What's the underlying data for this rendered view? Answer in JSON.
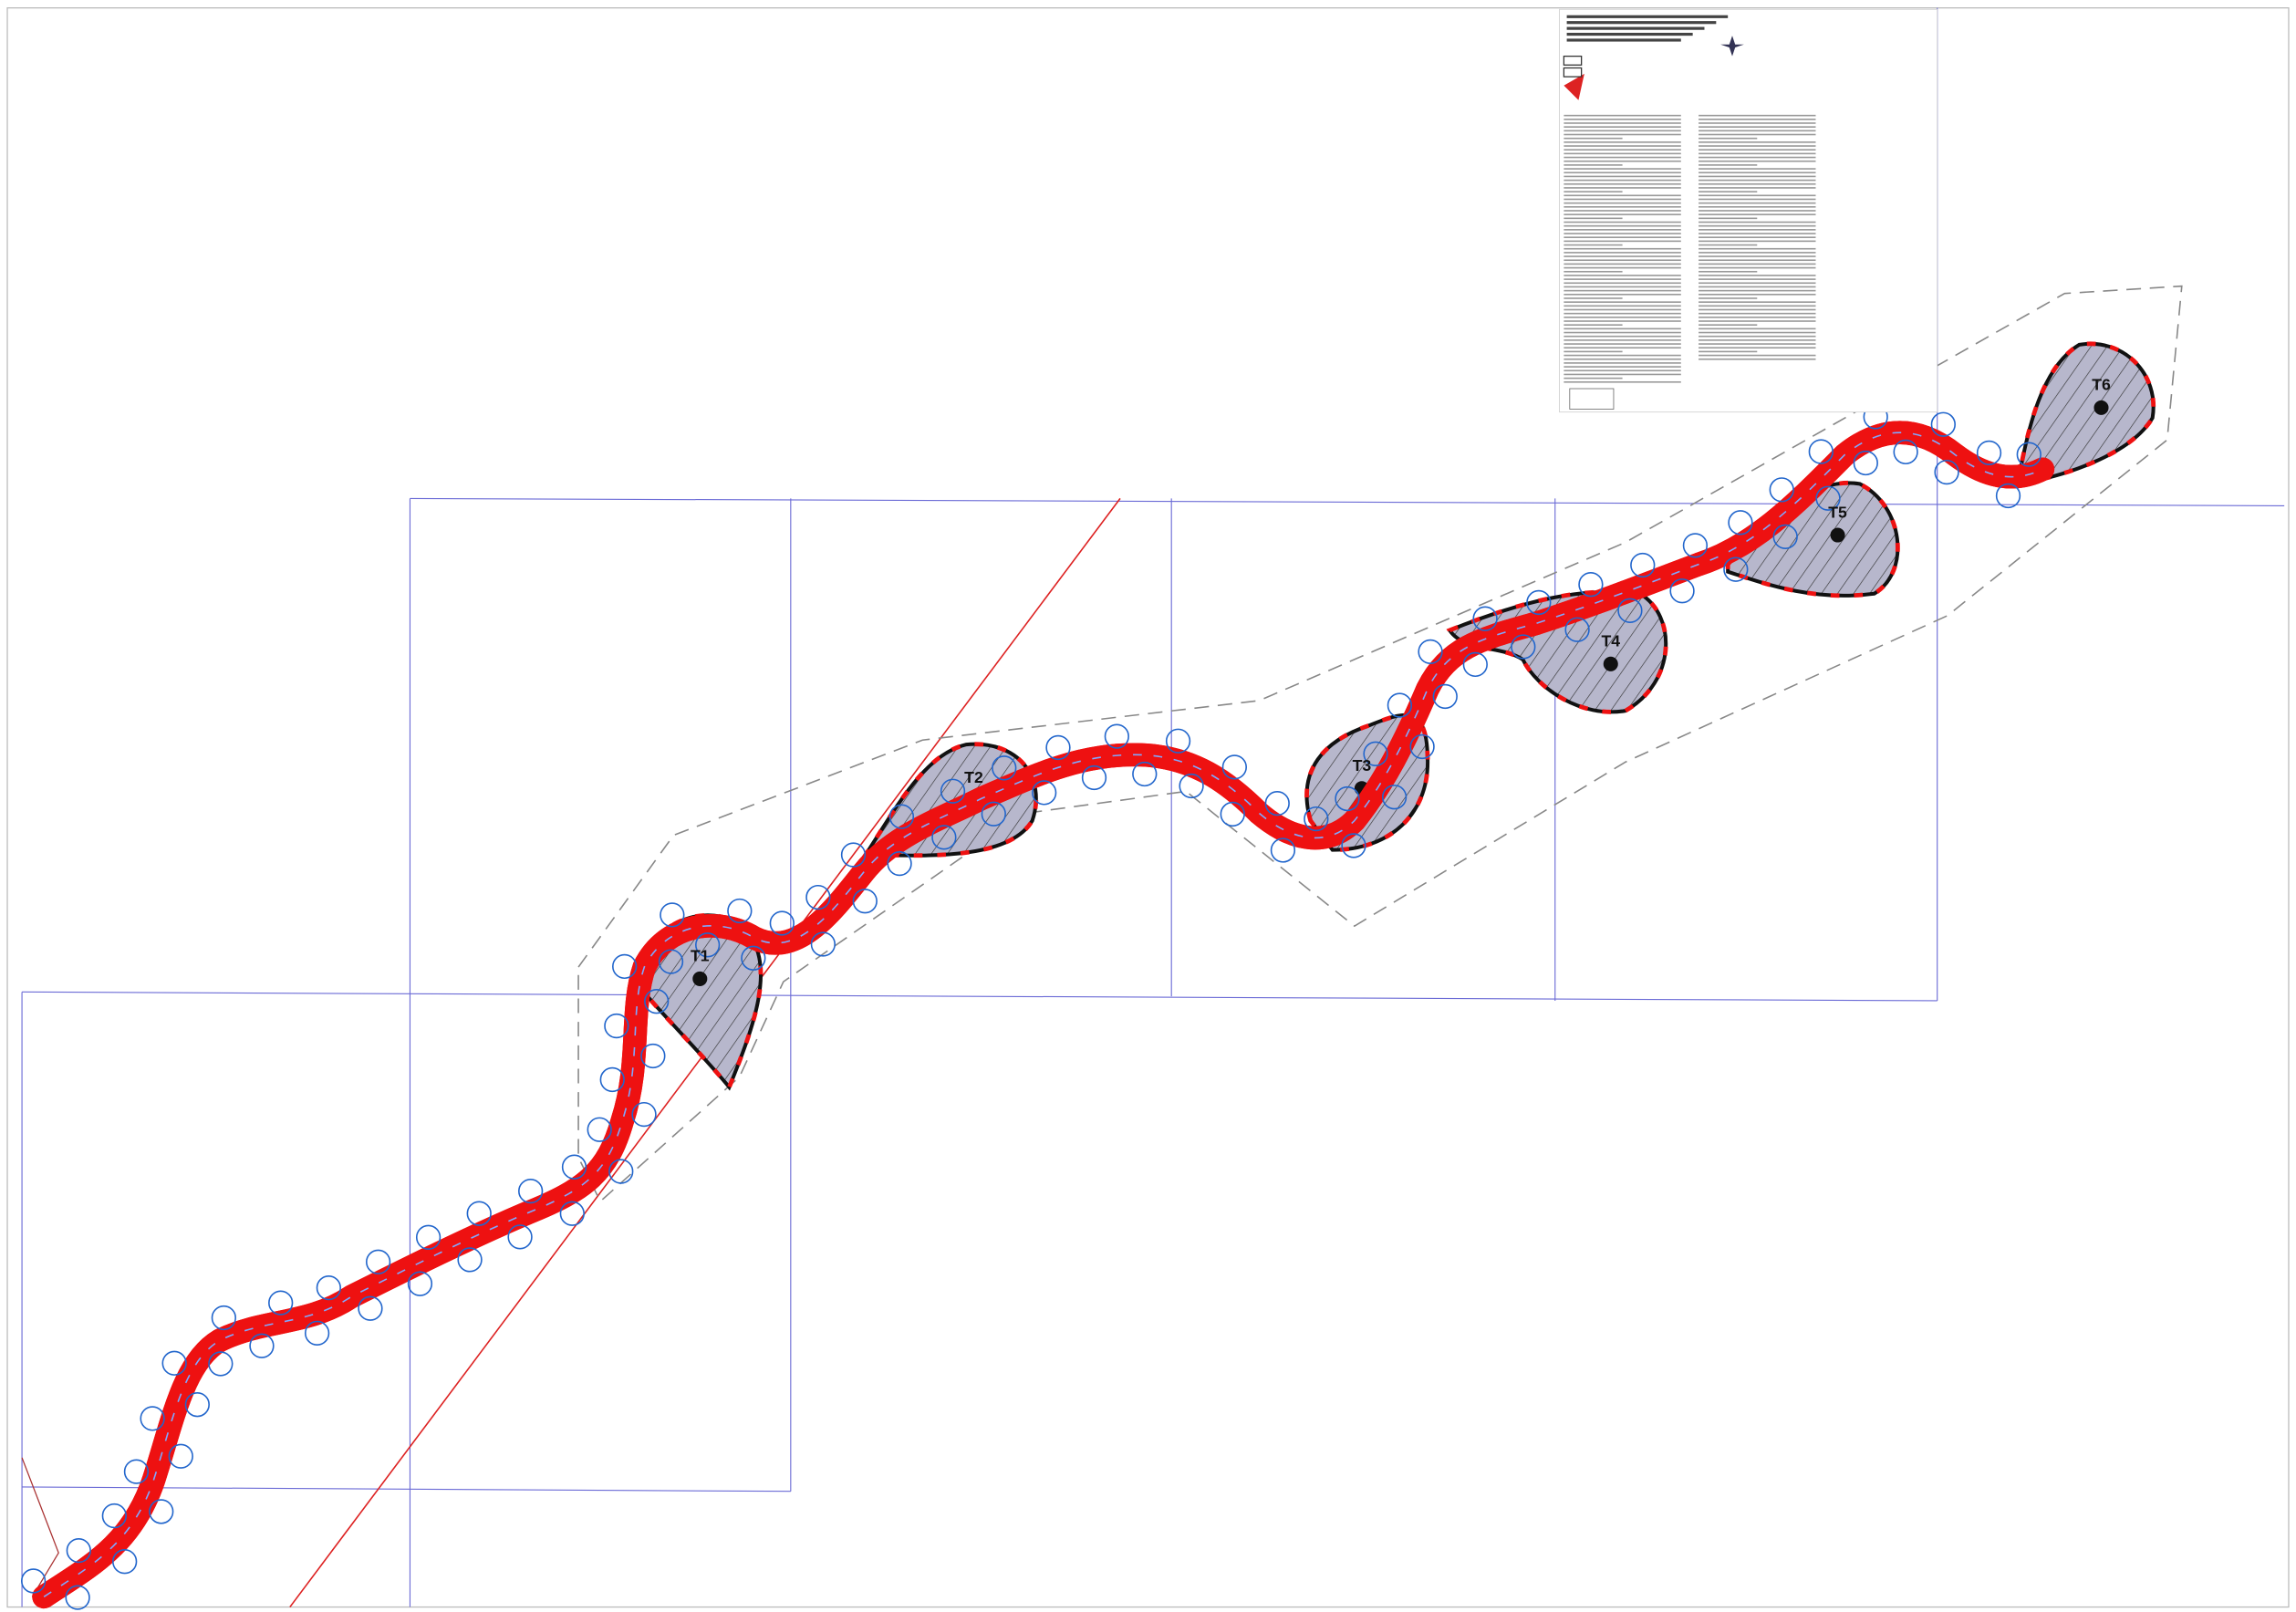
{
  "turbines": [
    {
      "label": "T1"
    },
    {
      "label": "T2"
    },
    {
      "label": "T3"
    },
    {
      "label": "T4"
    },
    {
      "label": "T5"
    },
    {
      "label": "T6"
    }
  ]
}
